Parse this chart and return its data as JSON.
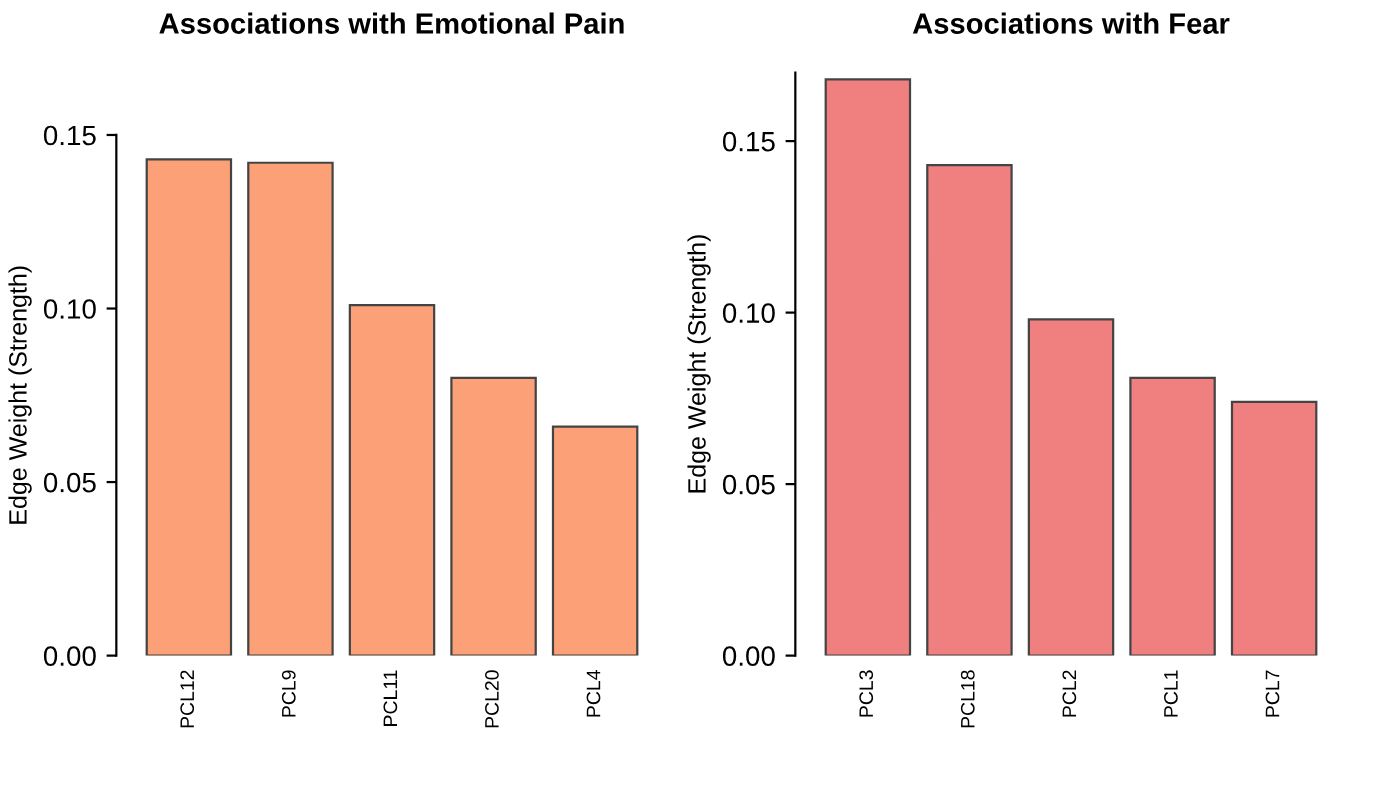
{
  "chart_data": [
    {
      "type": "bar",
      "title": "Associations with Emotional Pain",
      "ylabel": "Edge Weight (Strength)",
      "categories": [
        "PCL12",
        "PCL9",
        "PCL11",
        "PCL20",
        "PCL4"
      ],
      "values": [
        0.143,
        0.142,
        0.101,
        0.08,
        0.066
      ],
      "color": "#fca078",
      "ylim": [
        0,
        0.15
      ],
      "yticks": [
        {
          "value": 0,
          "label": "0.00"
        },
        {
          "value": 0.05,
          "label": "0.05"
        },
        {
          "value": 0.1,
          "label": "0.10"
        },
        {
          "value": 0.15,
          "label": "0.15"
        }
      ],
      "grid": false
    },
    {
      "type": "bar",
      "title": "Associations with Fear",
      "ylabel": "Edge Weight (Strength)",
      "categories": [
        "PCL3",
        "PCL18",
        "PCL2",
        "PCL1",
        "PCL7"
      ],
      "values": [
        0.168,
        0.143,
        0.098,
        0.081,
        0.074
      ],
      "color": "#f08080",
      "ylim": [
        0,
        0.17
      ],
      "yticks": [
        {
          "value": 0,
          "label": "0.00"
        },
        {
          "value": 0.05,
          "label": "0.05"
        },
        {
          "value": 0.1,
          "label": "0.10"
        },
        {
          "value": 0.15,
          "label": "0.15"
        }
      ],
      "grid": false
    }
  ]
}
